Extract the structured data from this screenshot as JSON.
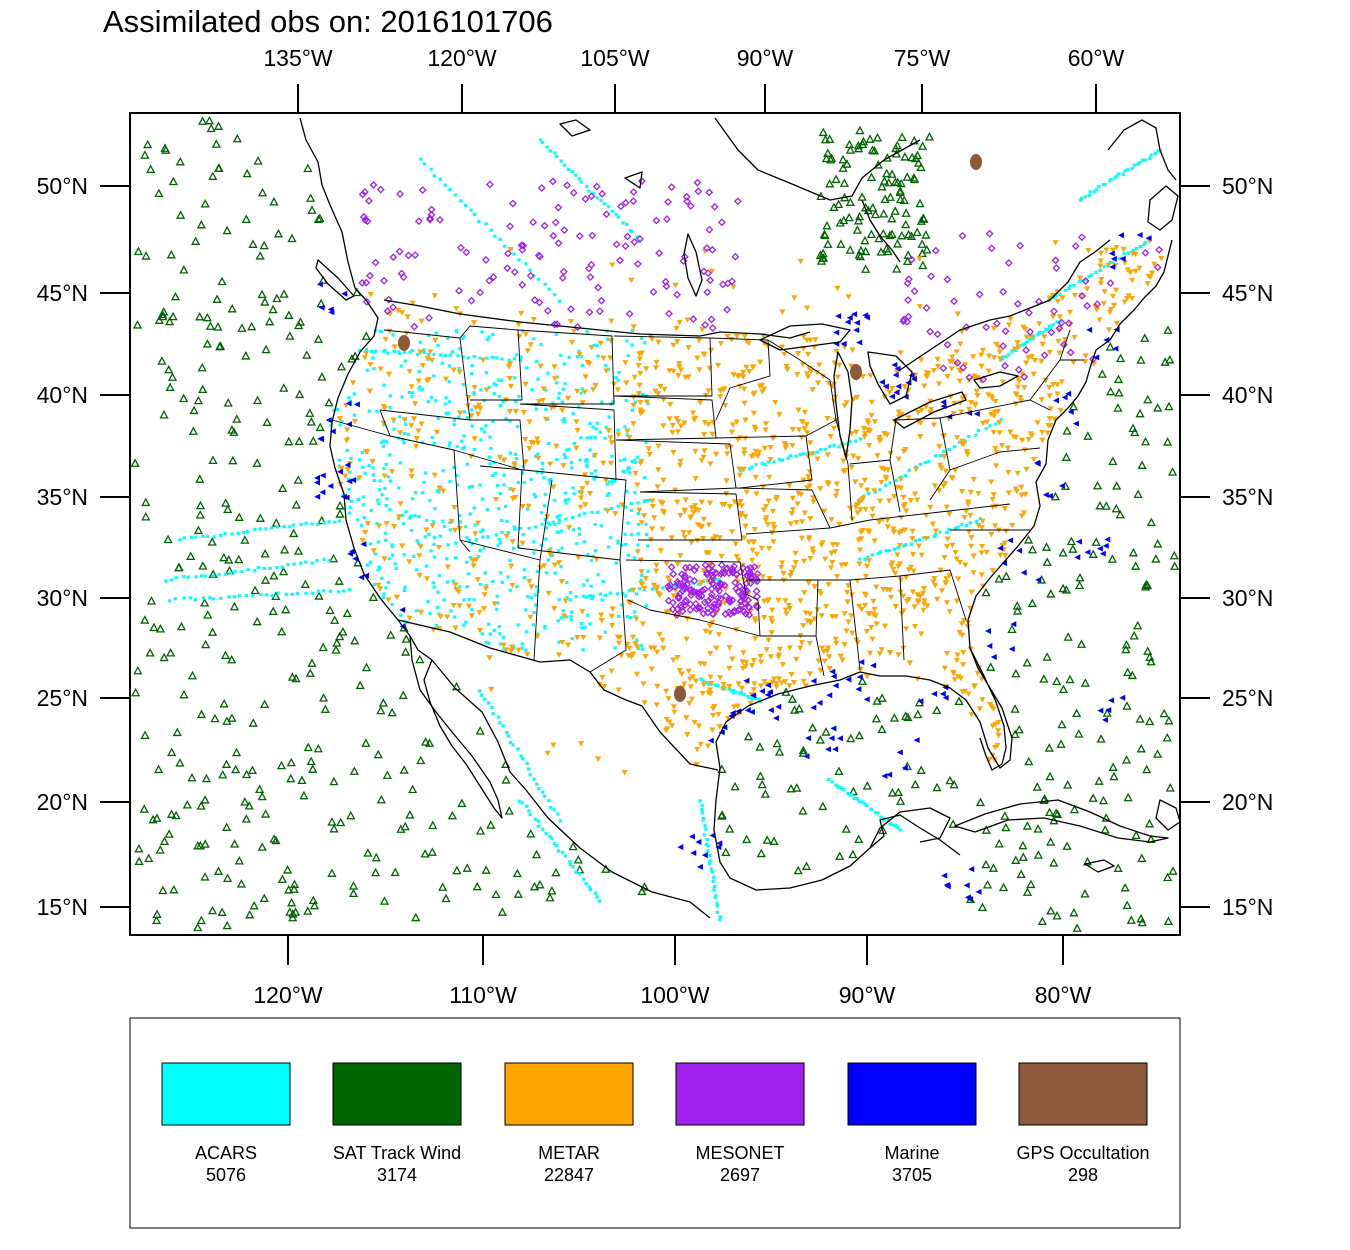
{
  "title": "Assimilated obs on: 2016101706",
  "map": {
    "top_lon_labels": [
      "135°W",
      "120°W",
      "105°W",
      "90°W",
      "75°W",
      "60°W"
    ],
    "bottom_lon_labels": [
      "120°W",
      "110°W",
      "100°W",
      "90°W",
      "80°W"
    ],
    "lat_labels": [
      "50°N",
      "45°N",
      "40°N",
      "35°N",
      "30°N",
      "25°N",
      "20°N",
      "15°N"
    ],
    "projection": "Lambert conformal, North America",
    "layers": [
      "coastlines",
      "US state boundaries",
      "country borders",
      "lakes"
    ]
  },
  "legend": {
    "items": [
      {
        "name": "ACARS",
        "count": "5076",
        "color": "#00FFFF",
        "marker": "small-square"
      },
      {
        "name": "SAT Track Wind",
        "count": "3174",
        "color": "#006400",
        "marker": "open-triangle-up"
      },
      {
        "name": "METAR",
        "count": "22847",
        "color": "#FFA500",
        "marker": "triangle-down"
      },
      {
        "name": "MESONET",
        "count": "2697",
        "color": "#A020F0",
        "marker": "open-diamond"
      },
      {
        "name": "Marine",
        "count": "3705",
        "color": "#0000FF",
        "marker": "triangle-left"
      },
      {
        "name": "GPS Occultation",
        "count": "298",
        "color": "#8B5A3C",
        "marker": "blob"
      }
    ]
  }
}
